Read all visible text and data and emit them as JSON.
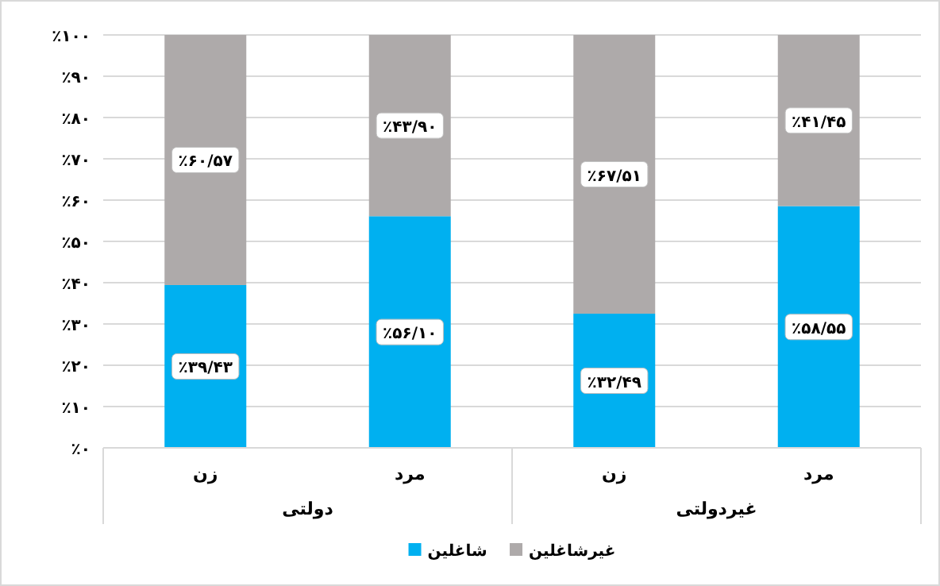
{
  "chart_data": {
    "type": "bar",
    "stacked": true,
    "categories": [
      "زن",
      "مرد",
      "زن",
      "مرد"
    ],
    "series": [
      {
        "name": "شاغلین",
        "color": "#00b0f0",
        "values": [
          39.43,
          56.1,
          32.49,
          58.55
        ],
        "value_labels": [
          "٪۳۹/۴۳",
          "٪۵۶/۱۰",
          "٪۳۲/۴۹",
          "٪۵۸/۵۵"
        ]
      },
      {
        "name": "غیرشاغلین",
        "color": "#aeaaaa",
        "values": [
          60.57,
          43.9,
          67.51,
          41.45
        ],
        "value_labels": [
          "٪۶۰/۵۷",
          "٪۴۳/۹۰",
          "٪۶۷/۵۱",
          "٪۴۱/۴۵"
        ]
      }
    ],
    "ylim": [
      0,
      100
    ],
    "yticks": [
      {
        "value": 0,
        "label": "٪۰"
      },
      {
        "value": 10,
        "label": "٪۱۰"
      },
      {
        "value": 20,
        "label": "٪۲۰"
      },
      {
        "value": 30,
        "label": "٪۳۰"
      },
      {
        "value": 40,
        "label": "٪۴۰"
      },
      {
        "value": 50,
        "label": "٪۵۰"
      },
      {
        "value": 60,
        "label": "٪۶۰"
      },
      {
        "value": 70,
        "label": "٪۷۰"
      },
      {
        "value": 80,
        "label": "٪۸۰"
      },
      {
        "value": 90,
        "label": "٪۹۰"
      },
      {
        "value": 100,
        "label": "٪۱۰۰"
      }
    ],
    "grid": "y",
    "legend": "bottom",
    "annotations": [
      "دولتی",
      "غیردولتی"
    ]
  }
}
